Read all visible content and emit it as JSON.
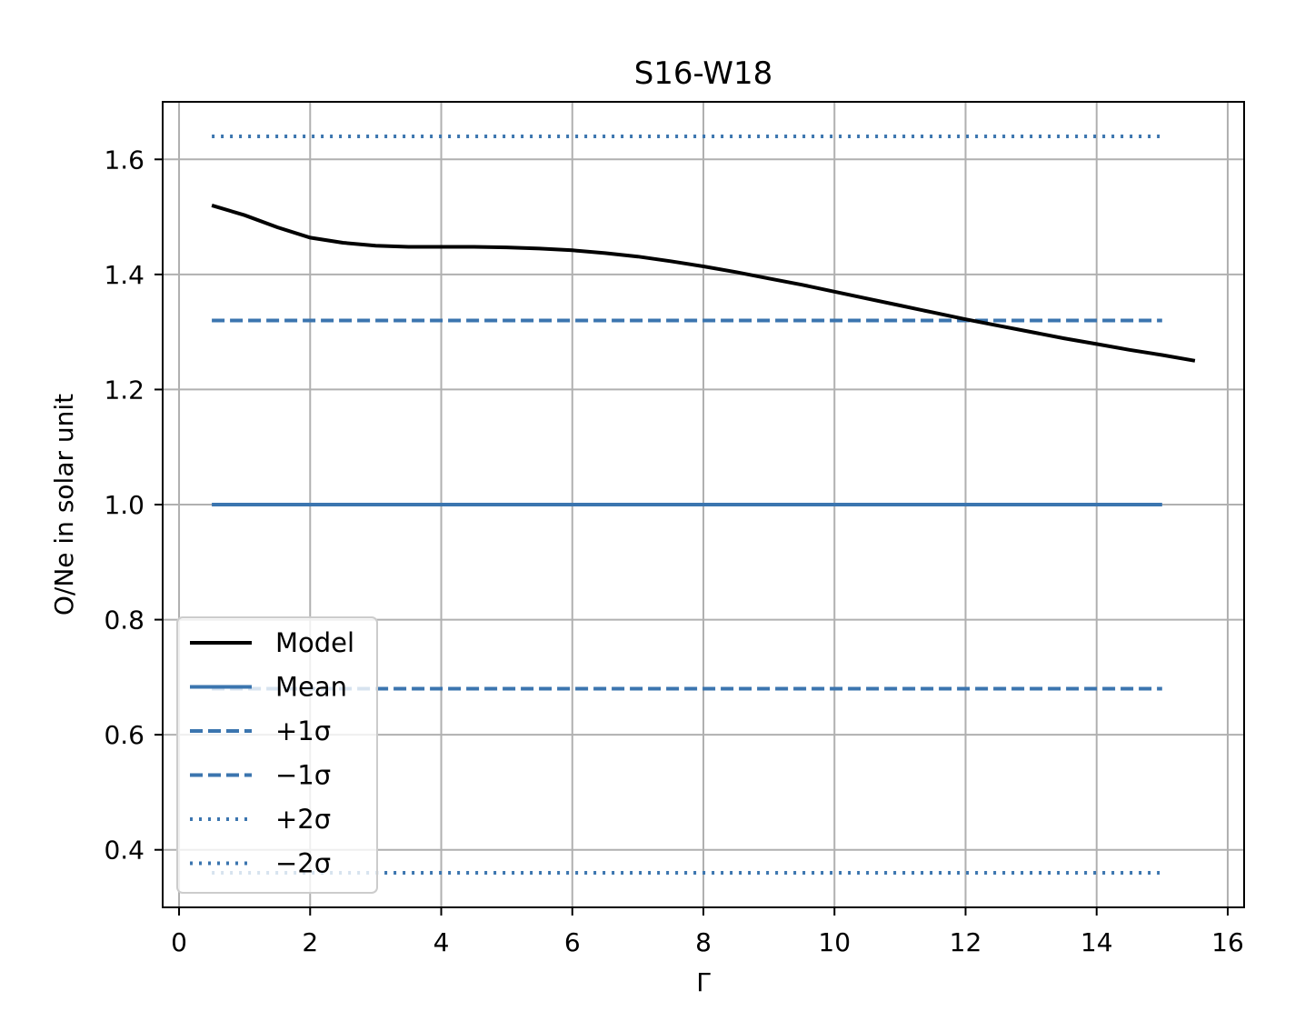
{
  "chart_data": {
    "type": "line",
    "title": "S16-W18",
    "xlabel": "Γ",
    "ylabel": "O/Ne in solar unit",
    "xlim": [
      -0.25,
      16.25
    ],
    "ylim": [
      0.3,
      1.7
    ],
    "xticks": [
      0,
      2,
      4,
      6,
      8,
      10,
      12,
      14,
      16
    ],
    "yticks": [
      0.4,
      0.6,
      0.8,
      1.0,
      1.2,
      1.4,
      1.6
    ],
    "xtick_labels": [
      "0",
      "2",
      "4",
      "6",
      "8",
      "10",
      "12",
      "14",
      "16"
    ],
    "ytick_labels": [
      "0.4",
      "0.6",
      "0.8",
      "1.0",
      "1.2",
      "1.4",
      "1.6"
    ],
    "grid": true,
    "legend_position": "lower-left",
    "series": [
      {
        "name": "Model",
        "style": "solid",
        "color": "#000000",
        "x": [
          0.5,
          1.0,
          1.5,
          2.0,
          2.5,
          3.0,
          3.5,
          4.0,
          4.5,
          5.0,
          5.5,
          6.0,
          6.5,
          7.0,
          7.5,
          8.0,
          8.5,
          9.0,
          9.5,
          10.0,
          10.5,
          11.0,
          11.5,
          12.0,
          12.5,
          13.0,
          13.5,
          14.0,
          14.5,
          15.0,
          15.5
        ],
        "y": [
          1.52,
          1.503,
          1.482,
          1.464,
          1.455,
          1.45,
          1.448,
          1.448,
          1.448,
          1.447,
          1.445,
          1.442,
          1.437,
          1.431,
          1.423,
          1.414,
          1.404,
          1.393,
          1.382,
          1.37,
          1.358,
          1.346,
          1.334,
          1.322,
          1.311,
          1.3,
          1.289,
          1.279,
          1.269,
          1.26,
          1.25
        ]
      },
      {
        "name": "Mean",
        "style": "solid",
        "color": "#3b75af",
        "x": [
          0.5,
          15.0
        ],
        "y": [
          1.0,
          1.0
        ]
      },
      {
        "name": "+1σ",
        "style": "dashed",
        "color": "#3b75af",
        "x": [
          0.5,
          15.0
        ],
        "y": [
          1.32,
          1.32
        ]
      },
      {
        "name": "−1σ",
        "style": "dashed",
        "color": "#3b75af",
        "x": [
          0.5,
          15.0
        ],
        "y": [
          0.68,
          0.68
        ]
      },
      {
        "name": "+2σ",
        "style": "dotted",
        "color": "#3b75af",
        "x": [
          0.5,
          15.0
        ],
        "y": [
          1.64,
          1.64
        ]
      },
      {
        "name": "−2σ",
        "style": "dotted",
        "color": "#3b75af",
        "x": [
          0.5,
          15.0
        ],
        "y": [
          0.36,
          0.36
        ]
      }
    ]
  }
}
